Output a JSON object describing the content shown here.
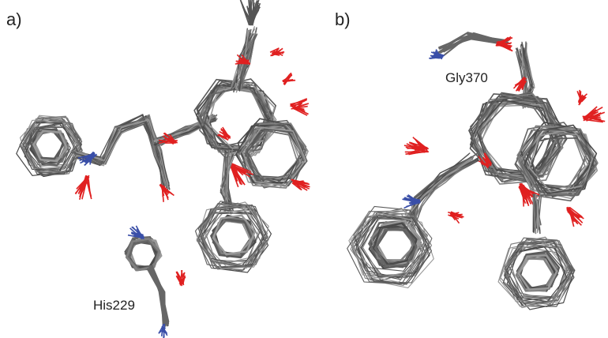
{
  "panels": [
    {
      "label": "a)",
      "annotation": "His229"
    },
    {
      "label": "b)",
      "annotation": "Gly370"
    }
  ]
}
